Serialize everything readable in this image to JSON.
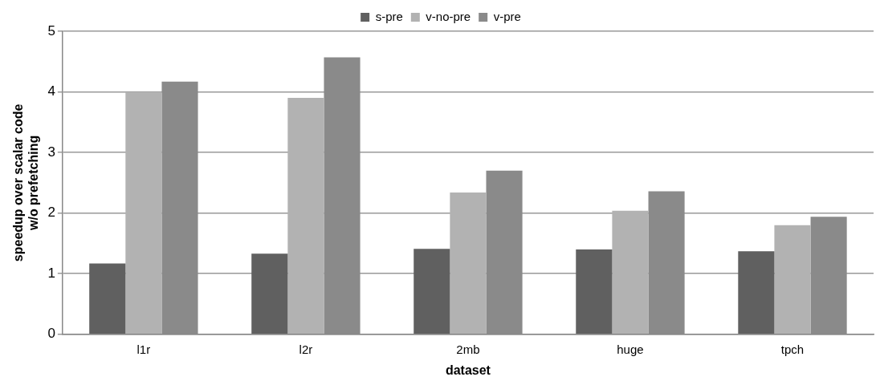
{
  "chart_data": {
    "type": "bar",
    "xlabel": "dataset",
    "ylabel": "speedup over scalar code w/o prefetching",
    "categories": [
      "l1r",
      "l2r",
      "2mb",
      "huge",
      "tpch"
    ],
    "series": [
      {
        "name": "s-pre",
        "color": "#606060",
        "values": [
          1.17,
          1.33,
          1.41,
          1.4,
          1.37
        ]
      },
      {
        "name": "v-no-pre",
        "color": "#b2b2b2",
        "values": [
          3.99,
          3.9,
          2.34,
          2.04,
          1.8
        ]
      },
      {
        "name": "v-pre",
        "color": "#8a8a8a",
        "values": [
          4.17,
          4.57,
          2.7,
          2.36,
          1.94
        ]
      }
    ],
    "ylim": [
      0,
      5
    ],
    "yticks": [
      0,
      1,
      2,
      3,
      4,
      5
    ],
    "grid": "y",
    "legend": "top"
  }
}
